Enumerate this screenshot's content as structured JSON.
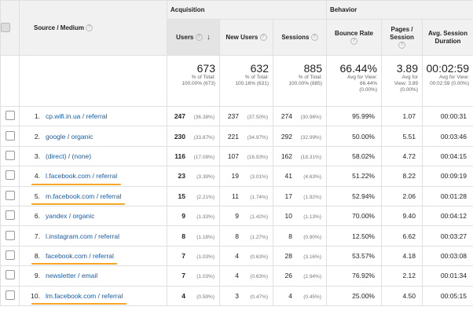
{
  "header": {
    "group_acquisition": "Acquisition",
    "group_behavior": "Behavior",
    "col_source": "Source / Medium",
    "col_users": "Users",
    "col_new_users": "New Users",
    "col_sessions": "Sessions",
    "col_bounce_line1": "Bounce Rate",
    "col_pages_line1": "Pages /",
    "col_pages_line2": "Session",
    "col_avg_line1": "Avg. Session",
    "col_avg_line2": "Duration",
    "help_glyph": "?",
    "sort_glyph": "↓"
  },
  "totals": {
    "users": {
      "value": "673",
      "line1": "% of Total:",
      "line2": "100.00% (673)"
    },
    "new_users": {
      "value": "632",
      "line1": "% of Total:",
      "line2": "100.16% (631)"
    },
    "sessions": {
      "value": "885",
      "line1": "% of Total:",
      "line2": "100.00% (885)"
    },
    "bounce": {
      "value": "66.44%",
      "line1": "Avg for View:",
      "line2": "66.44%",
      "line3": "(0.00%)"
    },
    "pages": {
      "value": "3.89",
      "line1": "Avg for",
      "line2": "View: 3.89",
      "line3": "(0.00%)"
    },
    "duration": {
      "value": "00:02:59",
      "line1": "Avg for View:",
      "line2": "00:02:59 (0.00%)"
    }
  },
  "rows": [
    {
      "idx": "1.",
      "source": "cp.wifi.in.ua / referral",
      "users": "247",
      "users_pct": "(36.38%)",
      "new_users": "237",
      "new_users_pct": "(37.50%)",
      "sessions": "274",
      "sessions_pct": "(30.96%)",
      "bounce": "95.99%",
      "pages": "1.07",
      "duration": "00:00:31",
      "underlined": false
    },
    {
      "idx": "2.",
      "source": "google / organic",
      "users": "230",
      "users_pct": "(33.87%)",
      "new_users": "221",
      "new_users_pct": "(34.97%)",
      "sessions": "292",
      "sessions_pct": "(32.99%)",
      "bounce": "50.00%",
      "pages": "5.51",
      "duration": "00:03:46",
      "underlined": false
    },
    {
      "idx": "3.",
      "source": "(direct) / (none)",
      "users": "116",
      "users_pct": "(17.08%)",
      "new_users": "107",
      "new_users_pct": "(16.93%)",
      "sessions": "162",
      "sessions_pct": "(18.31%)",
      "bounce": "58.02%",
      "pages": "4.72",
      "duration": "00:04:15",
      "underlined": false
    },
    {
      "idx": "4.",
      "source": "l.facebook.com / referral",
      "users": "23",
      "users_pct": "(3.39%)",
      "new_users": "19",
      "new_users_pct": "(3.01%)",
      "sessions": "41",
      "sessions_pct": "(4.63%)",
      "bounce": "51.22%",
      "pages": "8.22",
      "duration": "00:09:19",
      "underlined": true
    },
    {
      "idx": "5.",
      "source": "m.facebook.com / referral",
      "users": "15",
      "users_pct": "(2.21%)",
      "new_users": "11",
      "new_users_pct": "(1.74%)",
      "sessions": "17",
      "sessions_pct": "(1.92%)",
      "bounce": "52.94%",
      "pages": "2.06",
      "duration": "00:01:28",
      "underlined": true
    },
    {
      "idx": "6.",
      "source": "yandex / organic",
      "users": "9",
      "users_pct": "(1.33%)",
      "new_users": "9",
      "new_users_pct": "(1.42%)",
      "sessions": "10",
      "sessions_pct": "(1.13%)",
      "bounce": "70.00%",
      "pages": "9.40",
      "duration": "00:04:12",
      "underlined": false
    },
    {
      "idx": "7.",
      "source": "l.instagram.com / referral",
      "users": "8",
      "users_pct": "(1.18%)",
      "new_users": "8",
      "new_users_pct": "(1.27%)",
      "sessions": "8",
      "sessions_pct": "(0.90%)",
      "bounce": "12.50%",
      "pages": "6.62",
      "duration": "00:03:27",
      "underlined": false
    },
    {
      "idx": "8.",
      "source": "facebook.com / referral",
      "users": "7",
      "users_pct": "(1.03%)",
      "new_users": "4",
      "new_users_pct": "(0.63%)",
      "sessions": "28",
      "sessions_pct": "(3.16%)",
      "bounce": "53.57%",
      "pages": "4.18",
      "duration": "00:03:08",
      "underlined": true
    },
    {
      "idx": "9.",
      "source": "newsletter / email",
      "users": "7",
      "users_pct": "(1.03%)",
      "new_users": "4",
      "new_users_pct": "(0.63%)",
      "sessions": "26",
      "sessions_pct": "(2.94%)",
      "bounce": "76.92%",
      "pages": "2.12",
      "duration": "00:01:34",
      "underlined": false
    },
    {
      "idx": "10.",
      "source": "lm.facebook.com / referral",
      "users": "4",
      "users_pct": "(0.59%)",
      "new_users": "3",
      "new_users_pct": "(0.47%)",
      "sessions": "4",
      "sessions_pct": "(0.45%)",
      "bounce": "25.00%",
      "pages": "4.50",
      "duration": "00:05:15",
      "underlined": true
    }
  ]
}
